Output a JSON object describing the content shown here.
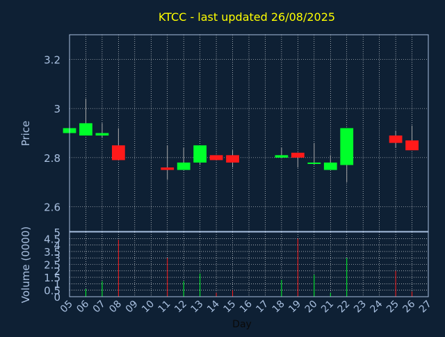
{
  "colors": {
    "background": "#0e2034",
    "title": "#ffff00",
    "axis_text": "#a9c0e0",
    "frame": "#a9c0e0",
    "grid": "#ffffff",
    "up": "#00ff2a",
    "down": "#ff1a1a",
    "wick": "#aaaaaa"
  },
  "chart_data": {
    "type": "candlestick",
    "title": "KTCC - last updated 26/08/2025",
    "xlabel": "Day",
    "price_panel": {
      "ylabel": "Price",
      "ylim": [
        2.5,
        3.3
      ],
      "yticks": [
        "2.6",
        "2.8",
        "3",
        "3.2"
      ],
      "grid": true
    },
    "volume_panel": {
      "ylabel": "Volume (0000)",
      "ylim": [
        0,
        5
      ],
      "yticks": [
        "0",
        "0.5",
        "1",
        "1.5",
        "2",
        "2.5",
        "3",
        "3.5",
        "4",
        "4.5",
        "5"
      ],
      "grid": true
    },
    "x_ticks": [
      "05",
      "06",
      "07",
      "08",
      "09",
      "10",
      "11",
      "12",
      "13",
      "14",
      "15",
      "16",
      "17",
      "18",
      "19",
      "20",
      "21",
      "22",
      "23",
      "24",
      "25",
      "26",
      "27"
    ],
    "candles": [
      {
        "day": "05",
        "open": 2.9,
        "high": 2.92,
        "low": 2.9,
        "close": 2.92,
        "volume": 0.0
      },
      {
        "day": "06",
        "open": 2.89,
        "high": 3.04,
        "low": 2.89,
        "close": 2.94,
        "volume": 0.6
      },
      {
        "day": "07",
        "open": 2.89,
        "high": 2.94,
        "low": 2.88,
        "close": 2.9,
        "volume": 1.2
      },
      {
        "day": "08",
        "open": 2.85,
        "high": 2.92,
        "low": 2.79,
        "close": 2.79,
        "volume": 4.4
      },
      {
        "day": "11",
        "open": 2.76,
        "high": 2.85,
        "low": 2.71,
        "close": 2.75,
        "volume": 3.0
      },
      {
        "day": "12",
        "open": 2.75,
        "high": 2.84,
        "low": 2.75,
        "close": 2.78,
        "volume": 1.2
      },
      {
        "day": "13",
        "open": 2.78,
        "high": 2.85,
        "low": 2.77,
        "close": 2.85,
        "volume": 1.8
      },
      {
        "day": "14",
        "open": 2.81,
        "high": 2.81,
        "low": 2.79,
        "close": 2.79,
        "volume": 0.3
      },
      {
        "day": "15",
        "open": 2.81,
        "high": 2.83,
        "low": 2.76,
        "close": 2.78,
        "volume": 0.5
      },
      {
        "day": "18",
        "open": 2.8,
        "high": 2.84,
        "low": 2.8,
        "close": 2.81,
        "volume": 1.3
      },
      {
        "day": "19",
        "open": 2.82,
        "high": 2.82,
        "low": 2.76,
        "close": 2.8,
        "volume": 4.5
      },
      {
        "day": "20",
        "open": 2.78,
        "high": 2.86,
        "low": 2.77,
        "close": 2.78,
        "volume": 1.7
      },
      {
        "day": "21",
        "open": 2.75,
        "high": 2.81,
        "low": 2.75,
        "close": 2.78,
        "volume": 0.3
      },
      {
        "day": "22",
        "open": 2.77,
        "high": 2.92,
        "low": 2.7,
        "close": 2.92,
        "volume": 3.0
      },
      {
        "day": "25",
        "open": 2.89,
        "high": 2.91,
        "low": 2.84,
        "close": 2.86,
        "volume": 2.0
      },
      {
        "day": "26",
        "open": 2.87,
        "high": 2.93,
        "low": 2.83,
        "close": 2.83,
        "volume": 0.4
      }
    ]
  }
}
